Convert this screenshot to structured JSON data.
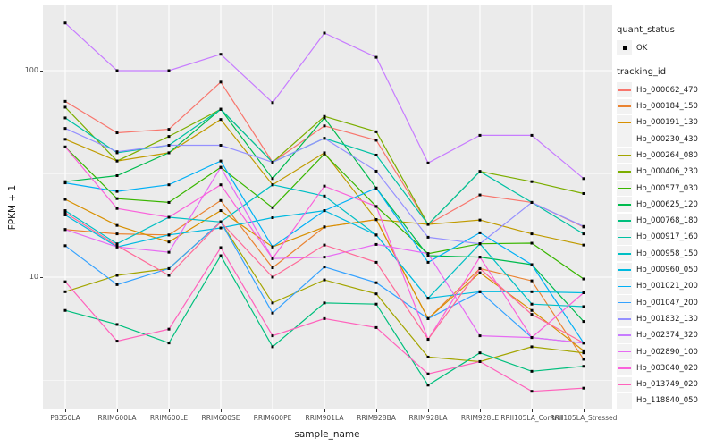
{
  "figure": {
    "bg": "#FFFFFF",
    "panel_bg": "#EBEBEB",
    "grid_color": "#FFFFFF",
    "tick_color": "#333333",
    "axis_text_color": "#4D4D4D",
    "point_color": "#000000"
  },
  "chart_data": {
    "type": "line",
    "title": "",
    "xlabel": "sample_name",
    "ylabel": "FPKM + 1",
    "y_scale": "log10",
    "y_major_ticks": [
      100,
      10
    ],
    "y_minor_ticks": [
      31.62,
      3.162
    ],
    "ylim": [
      2.3,
      200
    ],
    "legend_position": "right",
    "grid": true,
    "x_categories": [
      "PB350LA",
      "RRIM600LA",
      "RRIM600LE",
      "RRIM600SE",
      "RRIM600PE",
      "RRIM901LA",
      "RRIM928BA",
      "RRIM928LA",
      "RRIM928LE",
      "RRII105LA_Control",
      "RRII105LA_Stressed"
    ],
    "series": [
      {
        "name": "Hb_000062_470",
        "color": "#F8766D",
        "values": [
          71,
          50,
          52,
          88,
          36,
          54,
          46,
          18,
          25,
          23,
          17.5
        ]
      },
      {
        "name": "Hb_000184_150",
        "color": "#EA8331",
        "values": [
          17,
          16.2,
          16,
          23.5,
          11.1,
          17.5,
          19,
          6.3,
          11,
          9.6,
          4.0
        ]
      },
      {
        "name": "Hb_000191_130",
        "color": "#D89000",
        "values": [
          23.8,
          17.8,
          14.8,
          21,
          14,
          17.5,
          19,
          6.3,
          10.5,
          6.9,
          4.4
        ]
      },
      {
        "name": "Hb_000230_430",
        "color": "#C09B00",
        "values": [
          46.5,
          36.5,
          40,
          58,
          28,
          40,
          19,
          18,
          18.9,
          16.2,
          14.3
        ]
      },
      {
        "name": "Hb_000264_080",
        "color": "#A3A500",
        "values": [
          8.5,
          10.2,
          11,
          18.5,
          7.5,
          9.7,
          8.3,
          4.1,
          3.9,
          4.6,
          4.3
        ]
      },
      {
        "name": "Hb_000406_230",
        "color": "#7CAE00",
        "values": [
          66.5,
          36.5,
          48,
          65,
          36,
          60,
          50.6,
          18,
          32.5,
          29,
          25.4
        ]
      },
      {
        "name": "Hb_000577_030",
        "color": "#39B600",
        "values": [
          42.7,
          24,
          23,
          34,
          21.7,
          39.5,
          22,
          13,
          14.5,
          14.6,
          9.8
        ]
      },
      {
        "name": "Hb_000625_120",
        "color": "#00BB4E",
        "values": [
          29,
          31,
          40,
          65,
          30,
          59,
          27,
          12.7,
          12.5,
          11.5,
          6.1
        ]
      },
      {
        "name": "Hb_000768_180",
        "color": "#00BF7D",
        "values": [
          6.9,
          5.9,
          4.8,
          12.7,
          4.6,
          7.5,
          7.4,
          3.0,
          4.3,
          3.5,
          3.7
        ]
      },
      {
        "name": "Hb_000917_160",
        "color": "#00C1A3",
        "values": [
          59,
          40,
          43.5,
          65,
          36,
          47,
          39,
          18,
          32.5,
          23,
          16.2
        ]
      },
      {
        "name": "Hb_000958_150",
        "color": "#00BFC4",
        "values": [
          21,
          14.5,
          19.5,
          18.5,
          28,
          24.7,
          16,
          7.9,
          14.5,
          7.4,
          7.2
        ]
      },
      {
        "name": "Hb_000960_050",
        "color": "#00BAE0",
        "values": [
          20,
          14,
          16,
          17.3,
          19.4,
          21,
          16,
          7.9,
          8.5,
          8.5,
          8.4
        ]
      },
      {
        "name": "Hb_001021_200",
        "color": "#00B0F6",
        "values": [
          28.6,
          26,
          28,
          36.5,
          14,
          21,
          27,
          11.8,
          16.4,
          11.5,
          4.8
        ]
      },
      {
        "name": "Hb_001047_200",
        "color": "#35A2FF",
        "values": [
          14.2,
          9.2,
          11,
          18.5,
          6.7,
          11.2,
          9.4,
          6.3,
          8.5,
          5.1,
          4.8
        ]
      },
      {
        "name": "Hb_001832_130",
        "color": "#9590FF",
        "values": [
          52.5,
          40.5,
          43.5,
          43.5,
          36,
          47,
          32.6,
          15.6,
          14.5,
          23,
          17.6
        ]
      },
      {
        "name": "Hb_002374_320",
        "color": "#C77CFF",
        "values": [
          170,
          100,
          100,
          120,
          70,
          152,
          116,
          35.7,
          48.6,
          48.6,
          30
        ]
      },
      {
        "name": "Hb_002890_100",
        "color": "#E76BF3",
        "values": [
          17,
          14,
          13.2,
          34,
          12.3,
          12.5,
          14.4,
          13,
          5.2,
          5.1,
          4.8
        ]
      },
      {
        "name": "Hb_003040_020",
        "color": "#FA62DB",
        "values": [
          42.7,
          21.5,
          19.5,
          28,
          12.3,
          27.6,
          22,
          5.0,
          12.5,
          5.1,
          8.4
        ]
      },
      {
        "name": "Hb_013749_020",
        "color": "#FF62BC",
        "values": [
          9.5,
          4.9,
          5.6,
          13.9,
          5.2,
          6.3,
          5.7,
          3.4,
          3.9,
          2.8,
          2.9
        ]
      },
      {
        "name": "Hb_118840_050",
        "color": "#FF6A98",
        "values": [
          20.5,
          14.2,
          10.2,
          18.5,
          10,
          14.3,
          11.8,
          5.0,
          11,
          6.6,
          4.8
        ]
      }
    ],
    "legend": {
      "quant_status": {
        "title": "quant_status",
        "items": [
          {
            "label": "OK"
          }
        ]
      },
      "tracking_id": {
        "title": "tracking_id"
      }
    }
  }
}
